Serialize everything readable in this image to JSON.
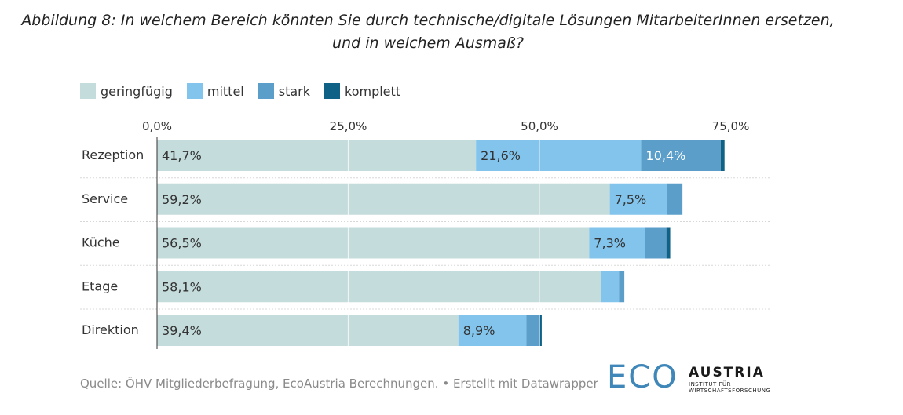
{
  "title": "Abbildung 8: In welchem Bereich könnten Sie durch technische/digitale Lösungen MitarbeiterInnen ersetzen, und in welchem Ausmaß?",
  "legend": [
    {
      "label": "geringfügig",
      "color": "#c5dcdc"
    },
    {
      "label": "mittel",
      "color": "#82c4ec"
    },
    {
      "label": "stark",
      "color": "#5b9ec9"
    },
    {
      "label": "komplett",
      "color": "#0f6186"
    }
  ],
  "footer": {
    "source": "Quelle: ÖHV Mitgliederbefragung, EcoAustria Berechnungen. • Erstellt mit Datawrapper"
  },
  "logo": {
    "eco": "ECO",
    "austria": "AUSTRIA",
    "sub_line1": "INSTITUT FÜR",
    "sub_line2": "WIRTSCHAFTSFORSCHUNG"
  },
  "chart_data": {
    "type": "bar",
    "orientation": "horizontal",
    "stacked": true,
    "categories": [
      "Rezeption",
      "Service",
      "Küche",
      "Etage",
      "Direktion"
    ],
    "series": [
      {
        "name": "geringfügig",
        "color": "#c5dcdc",
        "values": [
          41.7,
          59.2,
          56.5,
          58.1,
          39.4
        ],
        "labels": [
          "41,7%",
          "59,2%",
          "56,5%",
          "58,1%",
          "39,4%"
        ]
      },
      {
        "name": "mittel",
        "color": "#82c4ec",
        "values": [
          21.6,
          7.5,
          7.3,
          2.3,
          8.9
        ],
        "labels": [
          "21,6%",
          "7,5%",
          "7,3%",
          "",
          "8,9%"
        ]
      },
      {
        "name": "stark",
        "color": "#5b9ec9",
        "values": [
          10.4,
          2.0,
          2.8,
          0.7,
          1.8
        ],
        "labels": [
          "10,4%",
          "",
          "",
          "",
          ""
        ]
      },
      {
        "name": "komplett",
        "color": "#0f6186",
        "values": [
          0.5,
          0.0,
          0.5,
          0.0,
          0.2
        ],
        "labels": [
          "",
          "",
          "",
          "",
          ""
        ]
      }
    ],
    "xlim": [
      0,
      75
    ],
    "ticks": [
      0,
      25,
      50,
      75
    ],
    "tick_labels": [
      "0,0%",
      "25,0%",
      "50,0%",
      "75,0%"
    ],
    "grid": true,
    "legend_position": "top-left"
  }
}
